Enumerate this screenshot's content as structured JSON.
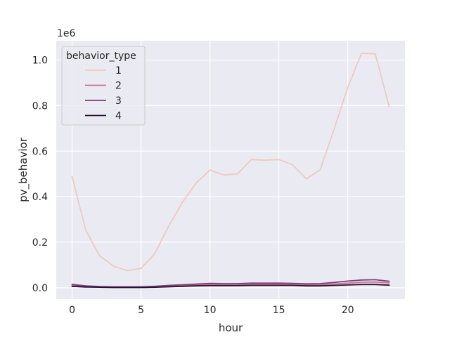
{
  "chart_data": {
    "type": "line",
    "xlabel": "hour",
    "ylabel": "pv_behavior",
    "y_offset_label": "1e6",
    "xlim": [
      -1.15,
      24.15
    ],
    "ylim": [
      -0.05,
      1.085
    ],
    "xticks": [
      0,
      5,
      10,
      15,
      20
    ],
    "yticks": [
      0.0,
      0.2,
      0.4,
      0.6,
      0.8,
      1.0
    ],
    "ytick_labels": [
      "0.0",
      "0.2",
      "0.4",
      "0.6",
      "0.8",
      "1.0"
    ],
    "grid": true,
    "legend": {
      "title": "behavior_type",
      "position": "top-left"
    },
    "x": [
      0,
      1,
      2,
      3,
      4,
      5,
      6,
      7,
      8,
      9,
      10,
      11,
      12,
      13,
      14,
      15,
      16,
      17,
      18,
      19,
      20,
      21,
      22,
      23
    ],
    "series": [
      {
        "name": "1",
        "color": "#f0c9c2",
        "values": [
          0.488,
          0.25,
          0.14,
          0.095,
          0.075,
          0.085,
          0.15,
          0.27,
          0.375,
          0.46,
          0.517,
          0.495,
          0.5,
          0.563,
          0.56,
          0.563,
          0.54,
          0.478,
          0.518,
          0.695,
          0.88,
          1.03,
          1.027,
          0.795
        ]
      },
      {
        "name": "2",
        "color": "#cc6f8c",
        "values": [
          0.01,
          0.006,
          0.004,
          0.003,
          0.003,
          0.003,
          0.005,
          0.008,
          0.01,
          0.012,
          0.014,
          0.013,
          0.013,
          0.015,
          0.015,
          0.015,
          0.014,
          0.013,
          0.013,
          0.016,
          0.02,
          0.024,
          0.025,
          0.021
        ]
      },
      {
        "name": "3",
        "color": "#7e3d7a",
        "values": [
          0.014,
          0.008,
          0.005,
          0.004,
          0.004,
          0.004,
          0.006,
          0.01,
          0.013,
          0.016,
          0.019,
          0.018,
          0.018,
          0.02,
          0.02,
          0.02,
          0.019,
          0.017,
          0.018,
          0.023,
          0.029,
          0.034,
          0.035,
          0.028
        ]
      },
      {
        "name": "4",
        "color": "#2a1232",
        "values": [
          0.006,
          0.003,
          0.002,
          0.001,
          0.001,
          0.001,
          0.002,
          0.004,
          0.006,
          0.008,
          0.009,
          0.009,
          0.009,
          0.01,
          0.01,
          0.01,
          0.01,
          0.008,
          0.008,
          0.01,
          0.012,
          0.014,
          0.014,
          0.011
        ]
      }
    ]
  }
}
